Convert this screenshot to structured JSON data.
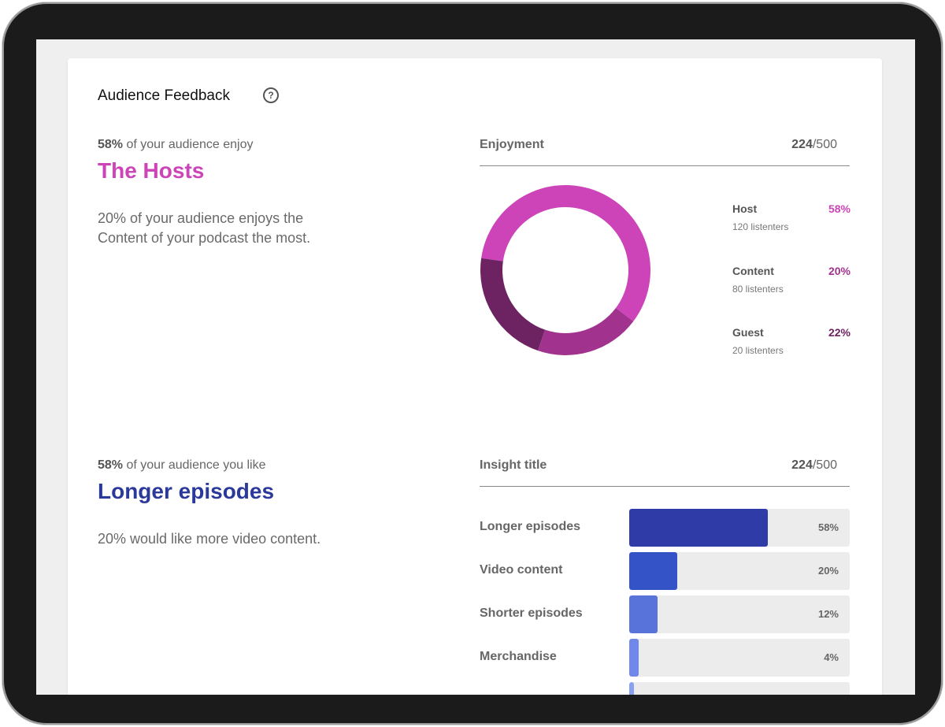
{
  "card": {
    "title": "Audience Feedback",
    "help_glyph": "?"
  },
  "section1": {
    "lead_pct": "58%",
    "lead_text": " of your audience enjoy",
    "headline": "The Hosts",
    "headline_color": "#cc44b8",
    "body": "20% of your audience enjoys the Content of your podcast the most.",
    "panel_label": "Enjoyment",
    "panel_count": "224",
    "panel_total": "/500"
  },
  "chart_data": [
    {
      "type": "pie",
      "donut": true,
      "slices": [
        {
          "name": "Host",
          "sub": "120 listenters",
          "value": 58,
          "label": "58%",
          "color": "#cc44b8"
        },
        {
          "name": "Content",
          "sub": "80 listenters",
          "value": 20,
          "label": "20%",
          "color": "#a1338f"
        },
        {
          "name": "Guest",
          "sub": "20 listenters",
          "value": 22,
          "label": "22%",
          "color": "#6d2362"
        }
      ]
    },
    {
      "type": "bar",
      "orientation": "horizontal",
      "categories": [
        "Longer episodes",
        "Video content",
        "Shorter episodes",
        "Merchandise",
        ""
      ],
      "values": [
        58,
        20,
        12,
        4,
        2
      ],
      "labels": [
        "58%",
        "20%",
        "12%",
        "4%",
        ""
      ],
      "colors": [
        "#2f3ca8",
        "#3453c6",
        "#5874da",
        "#7088ea",
        "#8aa0f2"
      ],
      "xlim": [
        0,
        100
      ]
    }
  ],
  "section2": {
    "lead_pct": "58%",
    "lead_text": " of your audience you like",
    "headline": "Longer episodes",
    "headline_color": "#2b3a9a",
    "body": "20% would like more video content.",
    "panel_label": "Insight title",
    "panel_count": "224",
    "panel_total": "/500"
  }
}
